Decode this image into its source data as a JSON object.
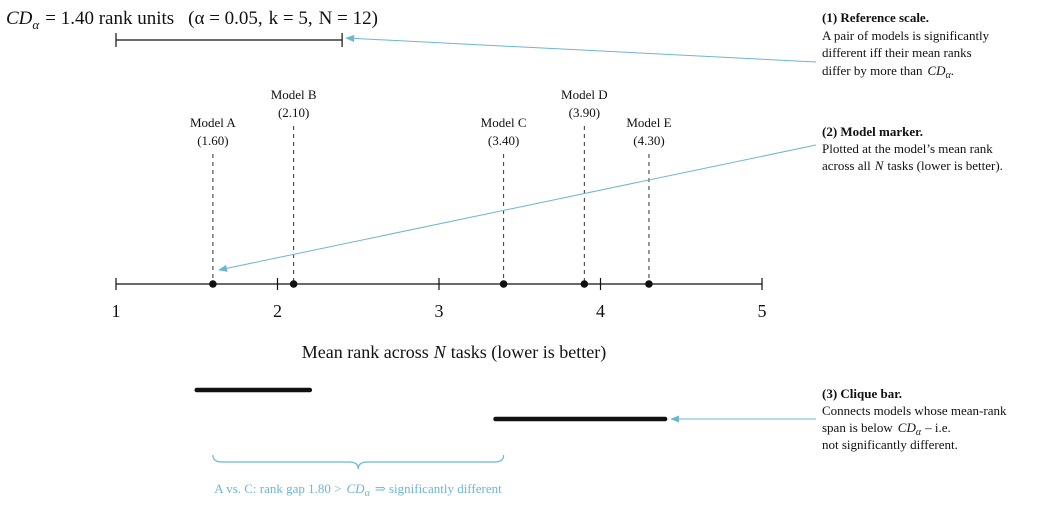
{
  "colors": {
    "ink": "#111111",
    "annotation": "#6bb6d6",
    "guide": "#333333"
  },
  "header": {
    "cd_symbol": "CD",
    "cd_sub": "α",
    "cd_value_text": "= 1.40 rank units",
    "params": [
      "(α = 0.05,",
      "k = 5,",
      "N = 12)"
    ]
  },
  "axis": {
    "label_prefix": "Mean rank across",
    "label_var": "N",
    "label_suffix": "tasks (lower is better)",
    "min": 1,
    "max": 5,
    "ticks": [
      1,
      2,
      3,
      4,
      5
    ]
  },
  "reference_scale": {
    "start": 1,
    "end": 2.4
  },
  "models": [
    {
      "name": "Model A",
      "value_label": "(1.60)",
      "rank": 1.6,
      "tier": "low"
    },
    {
      "name": "Model B",
      "value_label": "(2.10)",
      "rank": 2.1,
      "tier": "high"
    },
    {
      "name": "Model C",
      "value_label": "(3.40)",
      "rank": 3.4,
      "tier": "low"
    },
    {
      "name": "Model D",
      "value_label": "(3.90)",
      "rank": 3.9,
      "tier": "high"
    },
    {
      "name": "Model E",
      "value_label": "(4.30)",
      "rank": 4.3,
      "tier": "low"
    }
  ],
  "cliques": [
    {
      "from": 1.5,
      "to": 2.2
    },
    {
      "from": 3.35,
      "to": 4.4
    }
  ],
  "brace": {
    "from": 1.6,
    "to": 3.4,
    "text_prefix": "A vs. C: rank gap 1.80 >",
    "cd_symbol": "CD",
    "cd_sub": "α",
    "text_suffix": "⇒ significantly different"
  },
  "notes": [
    {
      "title": "(1) Reference scale.",
      "lines": [
        "A pair of models is significantly",
        "different iff their mean ranks",
        "differ by more than"
      ],
      "tail_symbol": "CD",
      "tail_sub": "α",
      "tail_end": "."
    },
    {
      "title": "(2) Model marker.",
      "lines": [
        "Plotted at the model’s mean rank"
      ],
      "last_prefix": "across all",
      "last_var": "N",
      "last_suffix": "tasks (lower is better)."
    },
    {
      "title": "(3) Clique bar.",
      "line1": "Connects models whose mean-rank",
      "line2_prefix": "span is below",
      "line2_symbol": "CD",
      "line2_sub": "α",
      "line2_suffix": "– i.e.",
      "line3": "not significantly different."
    }
  ]
}
